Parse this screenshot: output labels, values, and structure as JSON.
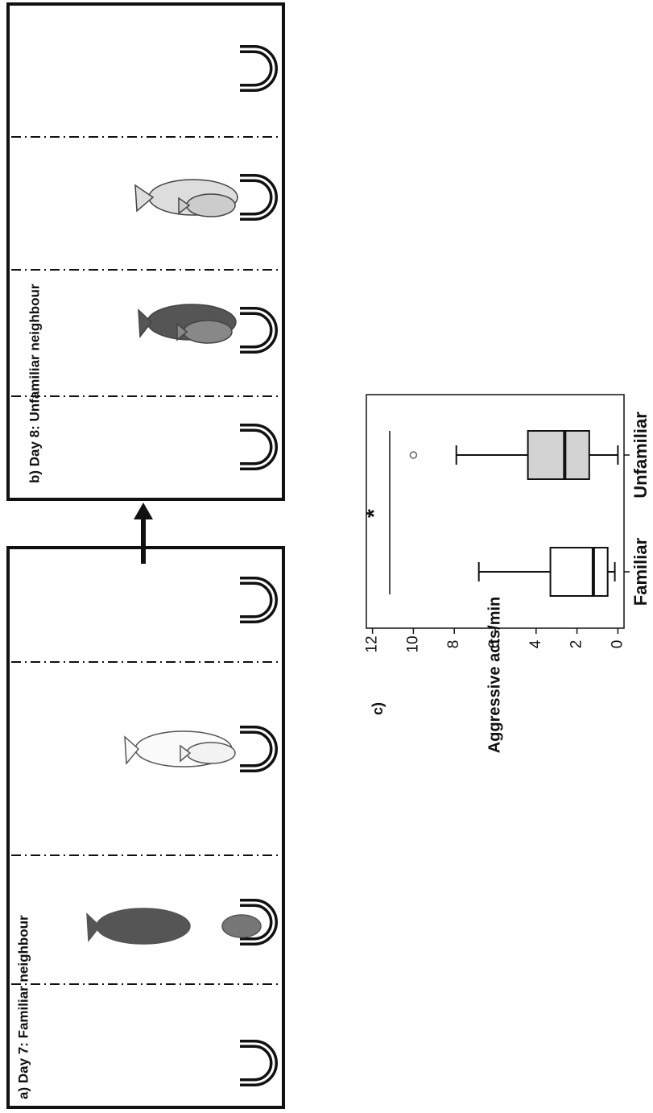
{
  "panels": [
    {
      "label": "a) Day 7: Familiar neighbour"
    },
    {
      "label": "b) Day 8: Unfamiliar neighbour"
    }
  ],
  "chart_data": {
    "type": "box",
    "label": "c)",
    "ylabel": "Aggressive acts/min",
    "annotation": "*",
    "categories": [
      "Familiar",
      "Unfamiliar"
    ],
    "boxes": [
      {
        "whisker_low": 0.15,
        "q1": 0.5,
        "median": 1.2,
        "q3": 3.3,
        "whisker_high": 6.8,
        "color": "#ffffff"
      },
      {
        "whisker_low": 0,
        "q1": 1.4,
        "median": 2.6,
        "q3": 4.4,
        "whisker_high": 7.9,
        "outliers": [
          10
        ],
        "color": "#d3d3d3"
      }
    ],
    "ylim": [
      -0.3,
      12.3
    ],
    "yticks": [
      0,
      2,
      4,
      6,
      8,
      10,
      12
    ]
  }
}
